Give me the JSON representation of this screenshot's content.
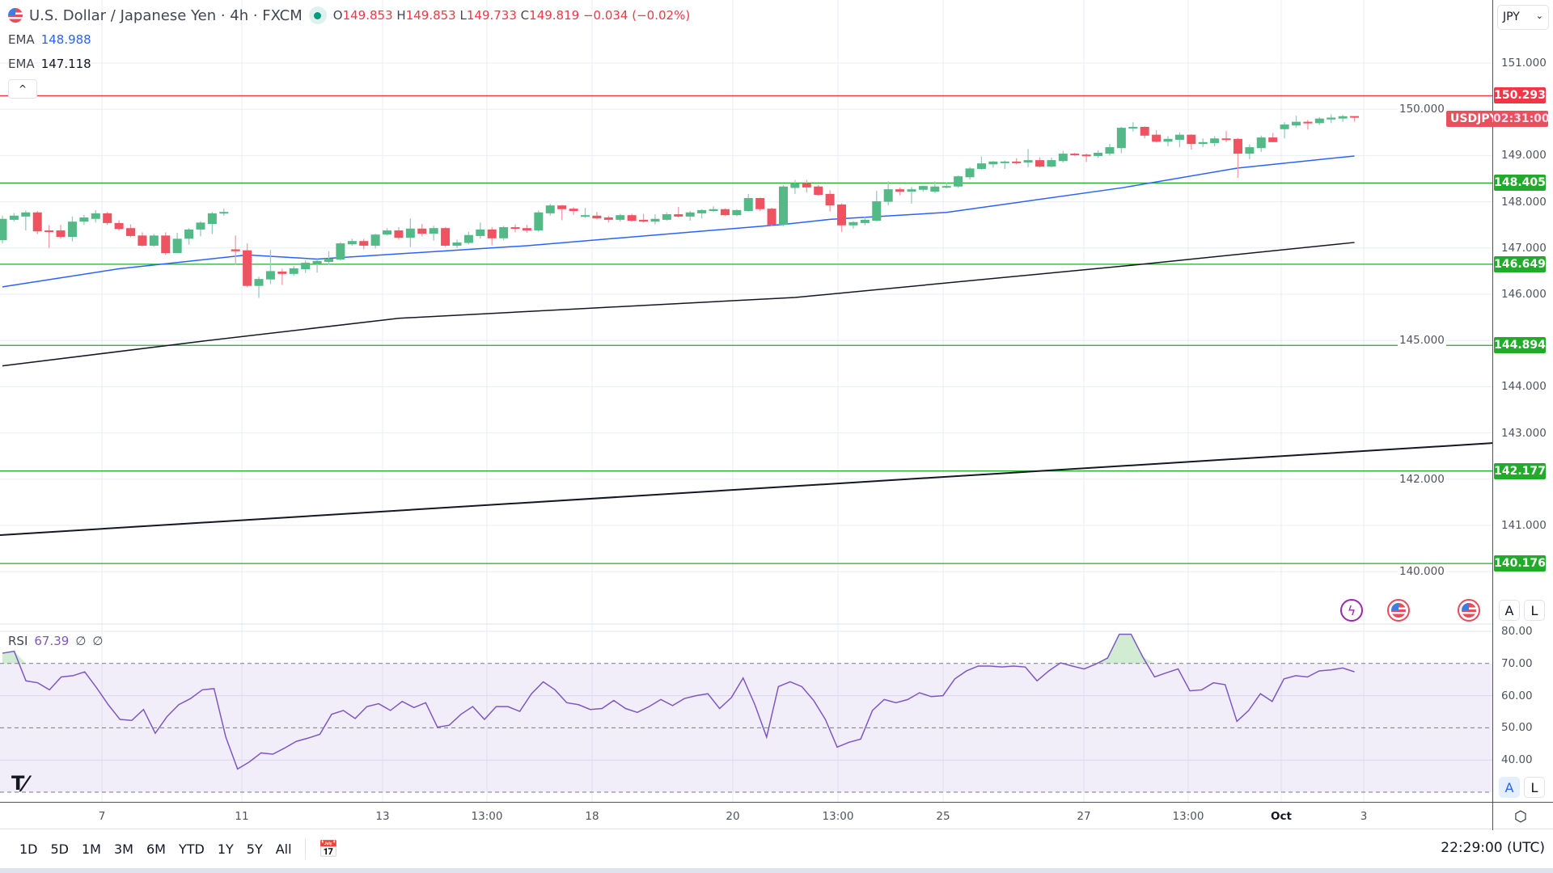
{
  "header": {
    "symbol_title": "U.S. Dollar / Japanese Yen · 4h · FXCM",
    "o_label": "O",
    "o": "149.853",
    "h_label": "H",
    "h": "149.853",
    "l_label": "L",
    "l": "149.733",
    "c_label": "C",
    "c": "149.819",
    "change": "−0.034 (−0.02%)"
  },
  "indicators": {
    "ema1": {
      "label": "EMA",
      "value": "148.988",
      "color": "#2962ff"
    },
    "ema2": {
      "label": "EMA",
      "value": "147.118",
      "color": "#131722"
    },
    "collapse_icon": "^"
  },
  "currency_select": {
    "value": "JPY"
  },
  "price_axis": {
    "ticks": [
      "151.000",
      "150.000",
      "149.000",
      "148.000",
      "147.000",
      "146.000",
      "145.000",
      "144.000",
      "143.000",
      "142.000",
      "141.000",
      "140.000"
    ],
    "levels": [
      {
        "value": "150.293",
        "color": "#f23645"
      },
      {
        "value": "148.405",
        "color": "#22ab2b"
      },
      {
        "value": "146.649",
        "color": "#22ab2b"
      },
      {
        "value": "144.894",
        "color": "#22ab2b"
      },
      {
        "value": "142.177",
        "color": "#22ab2b"
      },
      {
        "value": "140.176",
        "color": "#22ab2b"
      }
    ],
    "symbol_tag": "USDJPY",
    "countdown": "02:31:00"
  },
  "scale_buttons": {
    "auto": "A",
    "log": "L"
  },
  "rsi": {
    "label": "RSI",
    "value": "67.39",
    "extra1": "∅",
    "extra2": "∅",
    "ticks": [
      "80.00",
      "70.00",
      "60.00",
      "50.00",
      "40.00"
    ]
  },
  "time_axis": {
    "labels": [
      "7",
      "11",
      "13",
      "13:00",
      "18",
      "20",
      "13:00",
      "25",
      "27",
      "13:00",
      "Oct",
      "3"
    ]
  },
  "toolbar": {
    "ranges": [
      "1D",
      "5D",
      "1M",
      "3M",
      "6M",
      "YTD",
      "1Y",
      "5Y",
      "All"
    ],
    "clock": "22:29:00 (UTC)"
  },
  "logo": "TV",
  "colors": {
    "up": "#53b987",
    "down": "#ef5261",
    "ema_fast": "#2962ff",
    "ema_slow": "#131722",
    "rsi": "#7e57c2"
  },
  "chart_data": {
    "type": "candlestick",
    "candles": [
      [
        147.17,
        147.7,
        147.1,
        147.63
      ],
      [
        147.61,
        147.76,
        147.57,
        147.7
      ],
      [
        147.68,
        147.81,
        147.38,
        147.77
      ],
      [
        147.77,
        147.8,
        147.3,
        147.36
      ],
      [
        147.38,
        147.49,
        147.0,
        147.36
      ],
      [
        147.38,
        147.5,
        147.2,
        147.24
      ],
      [
        147.24,
        147.68,
        147.14,
        147.57
      ],
      [
        147.57,
        147.72,
        147.5,
        147.66
      ],
      [
        147.63,
        147.82,
        147.55,
        147.75
      ],
      [
        147.75,
        147.78,
        147.5,
        147.54
      ],
      [
        147.54,
        147.6,
        147.37,
        147.41
      ],
      [
        147.43,
        147.51,
        147.23,
        147.26
      ],
      [
        147.27,
        147.34,
        147.03,
        147.05
      ],
      [
        147.05,
        147.3,
        147.03,
        147.27
      ],
      [
        147.27,
        147.34,
        146.85,
        146.89
      ],
      [
        146.89,
        147.33,
        146.89,
        147.2
      ],
      [
        147.2,
        147.43,
        147.07,
        147.4
      ],
      [
        147.4,
        147.58,
        147.25,
        147.55
      ],
      [
        147.52,
        147.78,
        147.3,
        147.75
      ],
      [
        147.76,
        147.85,
        147.7,
        147.78
      ],
      [
        146.97,
        147.27,
        146.64,
        146.93
      ],
      [
        146.95,
        147.1,
        146.15,
        146.18
      ],
      [
        146.18,
        146.38,
        145.92,
        146.33
      ],
      [
        146.32,
        146.96,
        146.22,
        146.5
      ],
      [
        146.49,
        146.55,
        146.2,
        146.44
      ],
      [
        146.44,
        146.61,
        146.4,
        146.56
      ],
      [
        146.54,
        146.73,
        146.46,
        146.68
      ],
      [
        146.66,
        146.76,
        146.47,
        146.72
      ],
      [
        146.7,
        146.93,
        146.64,
        146.77
      ],
      [
        146.75,
        147.13,
        146.73,
        147.1
      ],
      [
        147.08,
        147.2,
        147.05,
        147.15
      ],
      [
        147.15,
        147.2,
        146.97,
        147.05
      ],
      [
        147.05,
        147.31,
        146.99,
        147.29
      ],
      [
        147.29,
        147.43,
        147.27,
        147.38
      ],
      [
        147.38,
        147.45,
        147.18,
        147.22
      ],
      [
        147.22,
        147.64,
        147.02,
        147.42
      ],
      [
        147.42,
        147.52,
        147.25,
        147.31
      ],
      [
        147.31,
        147.48,
        147.16,
        147.43
      ],
      [
        147.43,
        147.45,
        147.03,
        147.05
      ],
      [
        147.05,
        147.18,
        147.0,
        147.12
      ],
      [
        147.11,
        147.35,
        147.08,
        147.28
      ],
      [
        147.26,
        147.55,
        147.2,
        147.4
      ],
      [
        147.4,
        147.45,
        147.06,
        147.21
      ],
      [
        147.21,
        147.48,
        147.17,
        147.45
      ],
      [
        147.45,
        147.51,
        147.34,
        147.42
      ],
      [
        147.43,
        147.5,
        147.33,
        147.38
      ],
      [
        147.38,
        147.81,
        147.35,
        147.77
      ],
      [
        147.75,
        147.95,
        147.7,
        147.92
      ],
      [
        147.92,
        147.93,
        147.6,
        147.84
      ],
      [
        147.85,
        147.88,
        147.72,
        147.8
      ],
      [
        147.69,
        147.87,
        147.65,
        147.71
      ],
      [
        147.7,
        147.78,
        147.62,
        147.64
      ],
      [
        147.66,
        147.7,
        147.55,
        147.61
      ],
      [
        147.61,
        147.74,
        147.57,
        147.71
      ],
      [
        147.71,
        147.74,
        147.57,
        147.59
      ],
      [
        147.61,
        147.74,
        147.55,
        147.57
      ],
      [
        147.57,
        147.73,
        147.51,
        147.63
      ],
      [
        147.61,
        147.77,
        147.59,
        147.73
      ],
      [
        147.73,
        147.89,
        147.66,
        147.68
      ],
      [
        147.68,
        147.8,
        147.59,
        147.77
      ],
      [
        147.75,
        147.84,
        147.64,
        147.82
      ],
      [
        147.8,
        147.9,
        147.78,
        147.84
      ],
      [
        147.84,
        147.86,
        147.69,
        147.71
      ],
      [
        147.71,
        147.84,
        147.69,
        147.82
      ],
      [
        147.8,
        148.17,
        147.78,
        148.08
      ],
      [
        148.08,
        148.09,
        147.8,
        147.84
      ],
      [
        147.85,
        147.87,
        147.48,
        147.5
      ],
      [
        147.5,
        148.36,
        147.47,
        148.33
      ],
      [
        148.3,
        148.47,
        148.17,
        148.4
      ],
      [
        148.4,
        148.47,
        148.2,
        148.31
      ],
      [
        148.33,
        148.36,
        148.13,
        148.15
      ],
      [
        148.17,
        148.25,
        147.79,
        147.92
      ],
      [
        147.94,
        147.97,
        147.35,
        147.49
      ],
      [
        147.49,
        147.58,
        147.42,
        147.56
      ],
      [
        147.54,
        147.67,
        147.49,
        147.61
      ],
      [
        147.59,
        148.24,
        147.57,
        148.01
      ],
      [
        148.0,
        148.44,
        147.92,
        148.27
      ],
      [
        148.27,
        148.31,
        148.14,
        148.22
      ],
      [
        148.22,
        148.32,
        147.96,
        148.27
      ],
      [
        148.26,
        148.35,
        148.22,
        148.34
      ],
      [
        148.22,
        148.44,
        148.19,
        148.33
      ],
      [
        148.31,
        148.41,
        148.29,
        148.34
      ],
      [
        148.33,
        148.57,
        148.3,
        148.55
      ],
      [
        148.53,
        148.75,
        148.48,
        148.72
      ],
      [
        148.71,
        148.98,
        148.69,
        148.83
      ],
      [
        148.81,
        148.88,
        148.74,
        148.87
      ],
      [
        148.86,
        148.89,
        148.71,
        148.87
      ],
      [
        148.87,
        148.94,
        148.81,
        148.86
      ],
      [
        148.85,
        149.14,
        148.75,
        148.9
      ],
      [
        148.9,
        148.96,
        148.74,
        148.76
      ],
      [
        148.76,
        148.96,
        148.74,
        148.9
      ],
      [
        148.88,
        149.1,
        148.85,
        149.04
      ],
      [
        149.04,
        149.06,
        148.99,
        149.01
      ],
      [
        149.02,
        149.04,
        148.86,
        148.99
      ],
      [
        148.99,
        149.11,
        148.95,
        149.06
      ],
      [
        149.04,
        149.25,
        149.0,
        149.18
      ],
      [
        149.16,
        149.62,
        149.05,
        149.6
      ],
      [
        149.59,
        149.72,
        149.52,
        149.62
      ],
      [
        149.62,
        149.63,
        149.37,
        149.43
      ],
      [
        149.45,
        149.55,
        149.28,
        149.3
      ],
      [
        149.3,
        149.42,
        149.2,
        149.36
      ],
      [
        149.34,
        149.5,
        149.18,
        149.45
      ],
      [
        149.45,
        149.46,
        149.13,
        149.25
      ],
      [
        149.25,
        149.37,
        149.18,
        149.29
      ],
      [
        149.27,
        149.42,
        149.2,
        149.37
      ],
      [
        149.37,
        149.53,
        149.29,
        149.34
      ],
      [
        149.36,
        149.38,
        148.52,
        149.04
      ],
      [
        149.04,
        149.24,
        148.92,
        149.18
      ],
      [
        149.16,
        149.43,
        149.08,
        149.39
      ],
      [
        149.39,
        149.49,
        149.29,
        149.29
      ],
      [
        149.57,
        149.72,
        149.37,
        149.67
      ],
      [
        149.65,
        149.86,
        149.6,
        149.73
      ],
      [
        149.73,
        149.77,
        149.56,
        149.7
      ],
      [
        149.7,
        149.83,
        149.66,
        149.8
      ],
      [
        149.78,
        149.89,
        149.7,
        149.82
      ],
      [
        149.8,
        149.88,
        149.73,
        149.85
      ],
      [
        149.853,
        149.853,
        149.733,
        149.819
      ]
    ],
    "ema_fast": [
      [
        0,
        146.16
      ],
      [
        10,
        146.55
      ],
      [
        21,
        146.85
      ],
      [
        27,
        146.76
      ],
      [
        45,
        147.05
      ],
      [
        67,
        147.51
      ],
      [
        71,
        147.62
      ],
      [
        81,
        147.77
      ],
      [
        96,
        148.3
      ],
      [
        106,
        148.73
      ],
      [
        116,
        148.99
      ]
    ],
    "ema_slow": [
      [
        0,
        144.45
      ],
      [
        17,
        144.98
      ],
      [
        34,
        145.48
      ],
      [
        68,
        145.93
      ],
      [
        97,
        146.63
      ],
      [
        116,
        147.12
      ]
    ],
    "trendline": {
      "start": [
        0,
        140.79
      ],
      "end_at_axis": 142.78
    },
    "rsi_values": [
      73.2,
      73.8,
      64.6,
      64.0,
      61.8,
      65.8,
      66.2,
      67.4,
      62.5,
      57.2,
      52.6,
      52.3,
      55.7,
      48.3,
      53.5,
      57.2,
      59.1,
      61.8,
      62.2,
      47.1,
      37.2,
      39.4,
      42.2,
      41.8,
      43.7,
      45.8,
      46.8,
      48.0,
      54.2,
      55.4,
      52.9,
      56.6,
      57.5,
      55.4,
      58.2,
      56.3,
      57.8,
      50.2,
      50.8,
      54.2,
      56.6,
      52.6,
      56.6,
      56.6,
      55.1,
      60.6,
      64.3,
      61.8,
      57.8,
      57.2,
      55.7,
      56.0,
      58.5,
      56.0,
      54.8,
      56.6,
      58.8,
      56.9,
      59.1,
      60.0,
      60.6,
      56.0,
      59.4,
      65.5,
      57.2,
      47.1,
      62.8,
      64.3,
      62.8,
      58.5,
      52.6,
      44.0,
      45.5,
      46.5,
      55.4,
      58.8,
      57.8,
      58.8,
      60.9,
      59.7,
      60.0,
      65.2,
      67.7,
      69.2,
      69.2,
      68.9,
      69.2,
      68.9,
      64.6,
      67.7,
      70.2,
      69.2,
      68.3,
      69.8,
      71.7,
      79.1,
      79.1,
      72.0,
      65.8,
      67.1,
      68.3,
      61.5,
      61.8,
      64.0,
      63.4,
      52.0,
      55.4,
      60.6,
      58.2,
      65.2,
      66.2,
      65.8,
      67.7,
      68.0,
      68.6,
      67.4
    ],
    "rsi_levels": [
      70,
      50,
      30
    ],
    "ylim": [
      139.6,
      151.5
    ]
  }
}
